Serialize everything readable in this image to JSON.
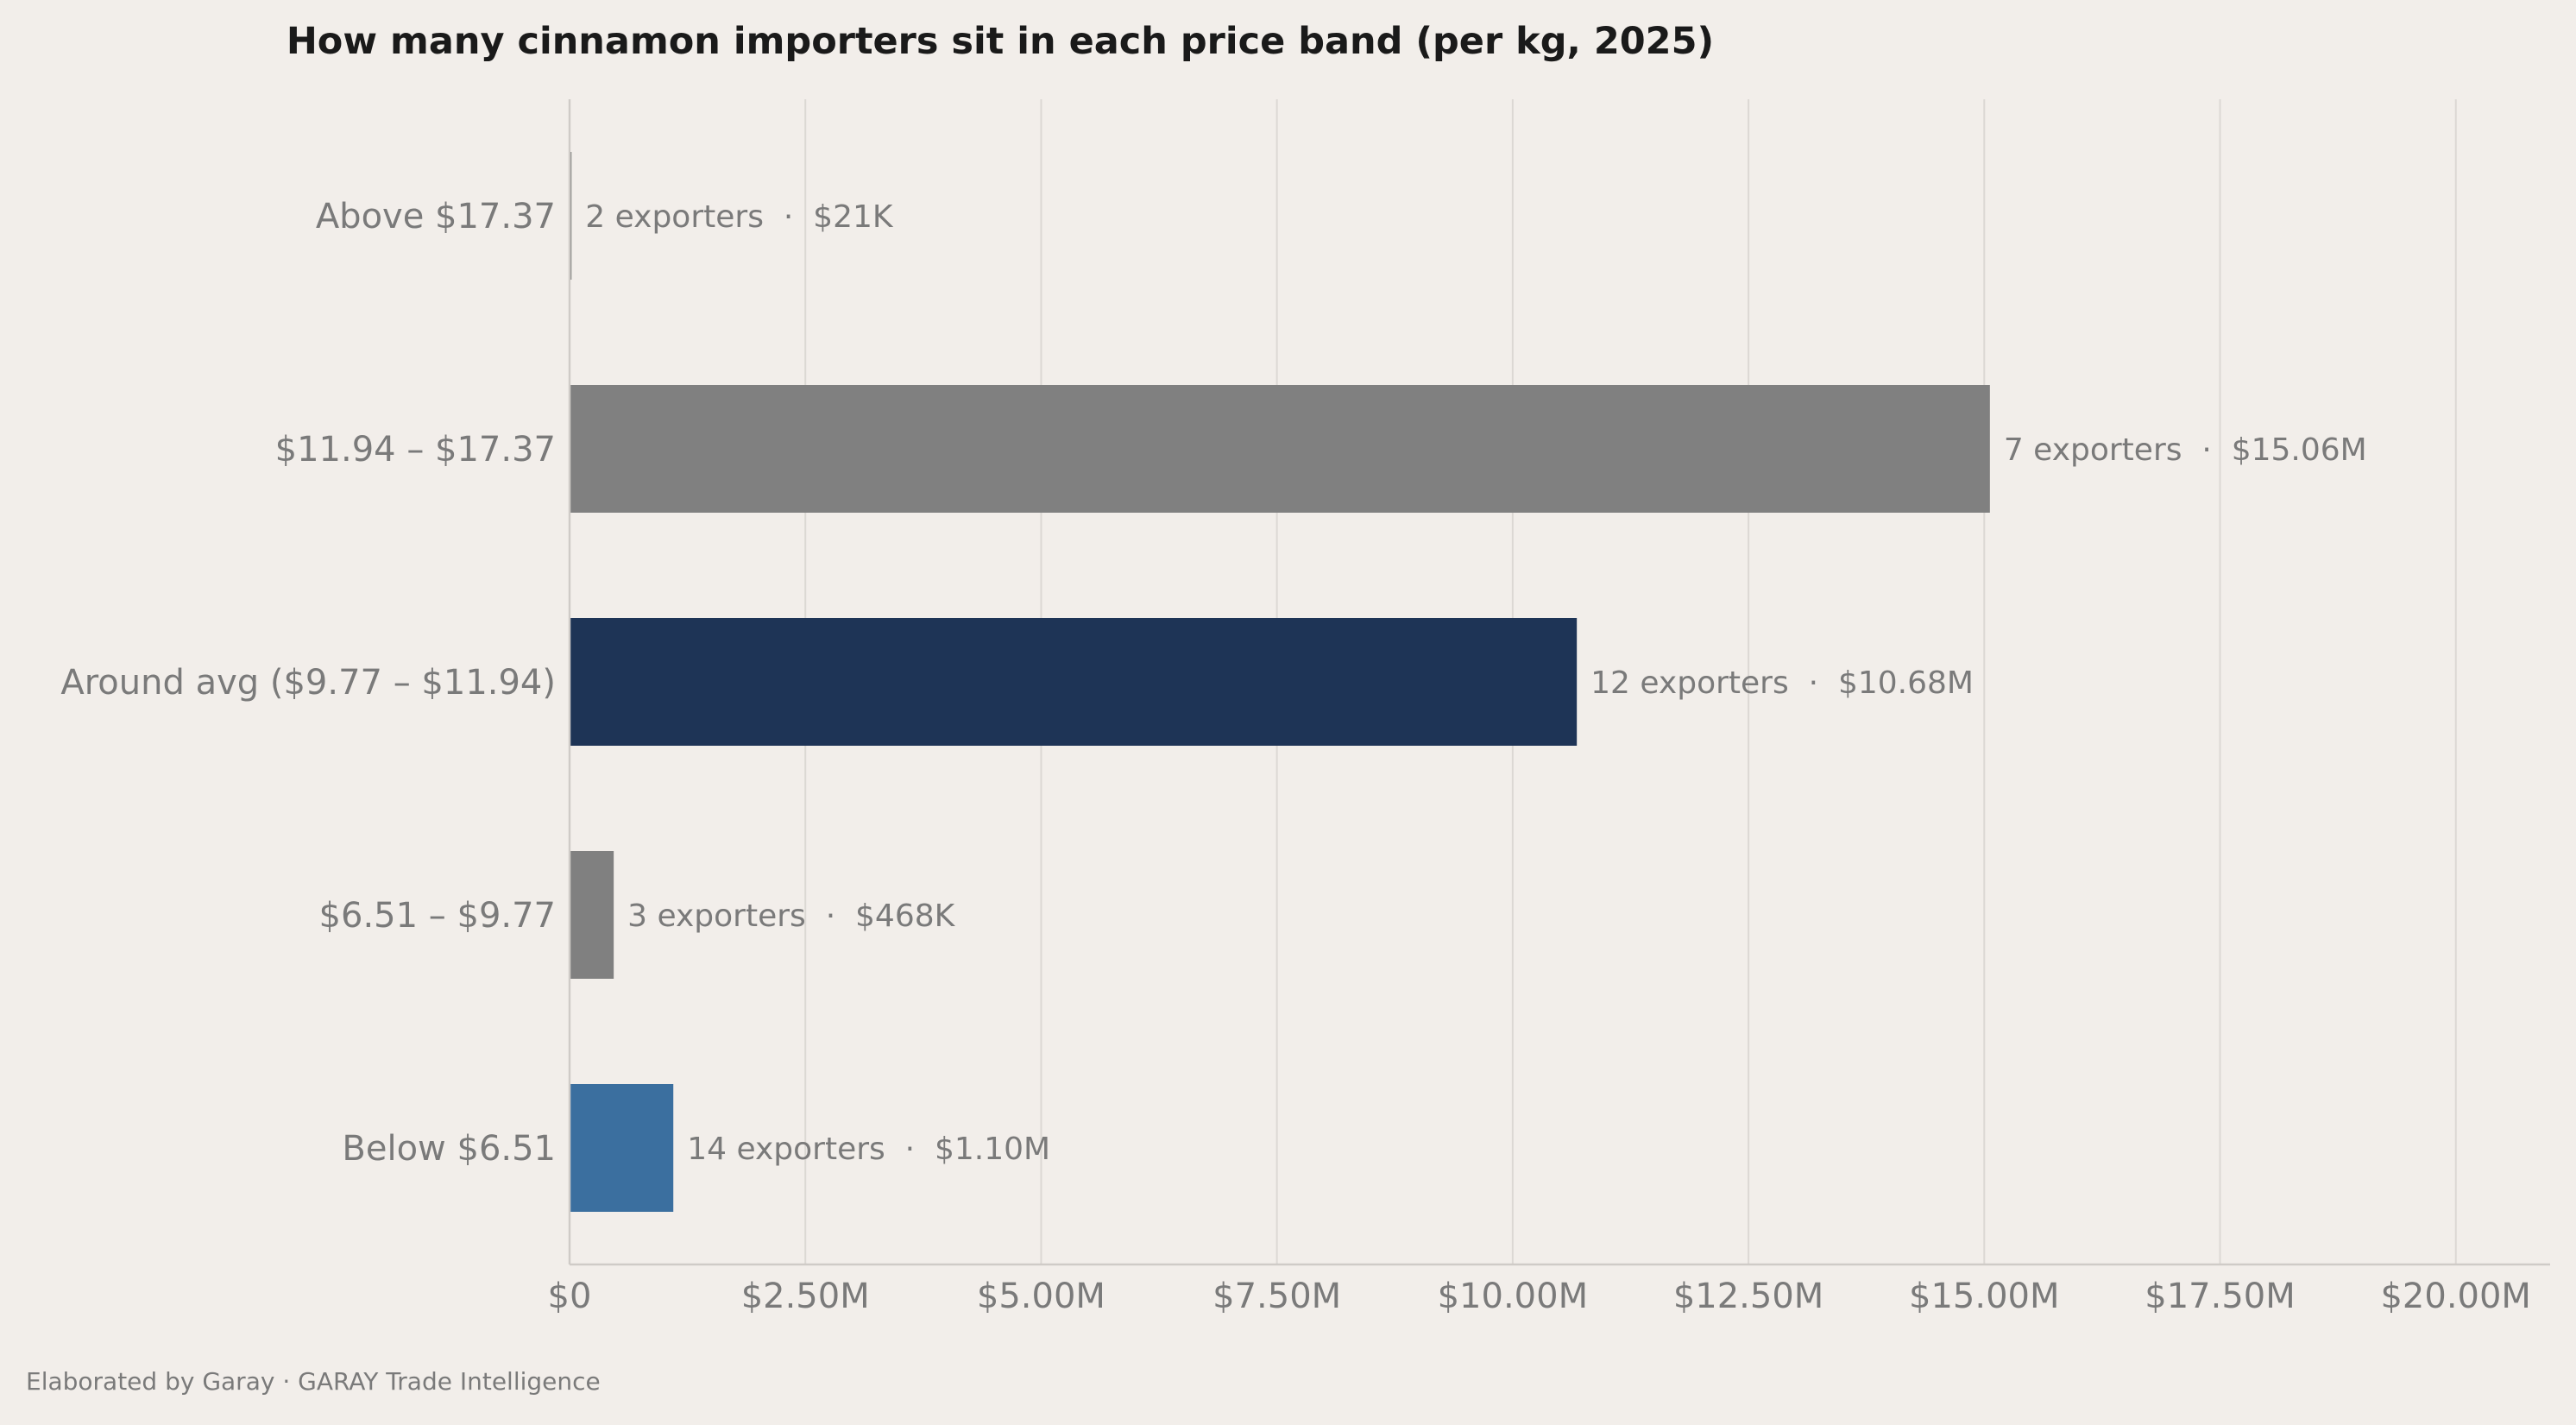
{
  "chart_data": {
    "type": "bar",
    "orientation": "horizontal",
    "title": "How many cinnamon importers sit in each price band (per kg, 2025)",
    "xlabel": "",
    "ylabel": "",
    "categories": [
      "Above $17.37",
      "$11.94 – $17.37",
      "Around avg ($9.77 – $11.94)",
      "$6.51 – $9.77",
      "Below $6.51"
    ],
    "values": [
      21000,
      15060000,
      10680000,
      468000,
      1100000
    ],
    "exporter_counts": [
      2,
      7,
      12,
      3,
      14
    ],
    "bar_labels": [
      "2 exporters  ·  $21K",
      "7 exporters  ·  $15.06M",
      "12 exporters  ·  $10.68M",
      "3 exporters  ·  $468K",
      "14 exporters  ·  $1.10M"
    ],
    "colors": [
      "#808080",
      "#808080",
      "#1e3456",
      "#808080",
      "#3b6f9f"
    ],
    "xlim": [
      0,
      21000000
    ],
    "x_ticks": [
      0,
      2500000,
      5000000,
      7500000,
      10000000,
      12500000,
      15000000,
      17500000,
      20000000
    ],
    "x_tick_labels": [
      "$0",
      "$2.50M",
      "$5.00M",
      "$7.50M",
      "$10.00M",
      "$12.50M",
      "$15.00M",
      "$17.50M",
      "$20.00M"
    ],
    "grid": "vertical"
  },
  "footer": "Elaborated by Garay  ·  GARAY Trade Intelligence",
  "background_color": "#f2eeea"
}
